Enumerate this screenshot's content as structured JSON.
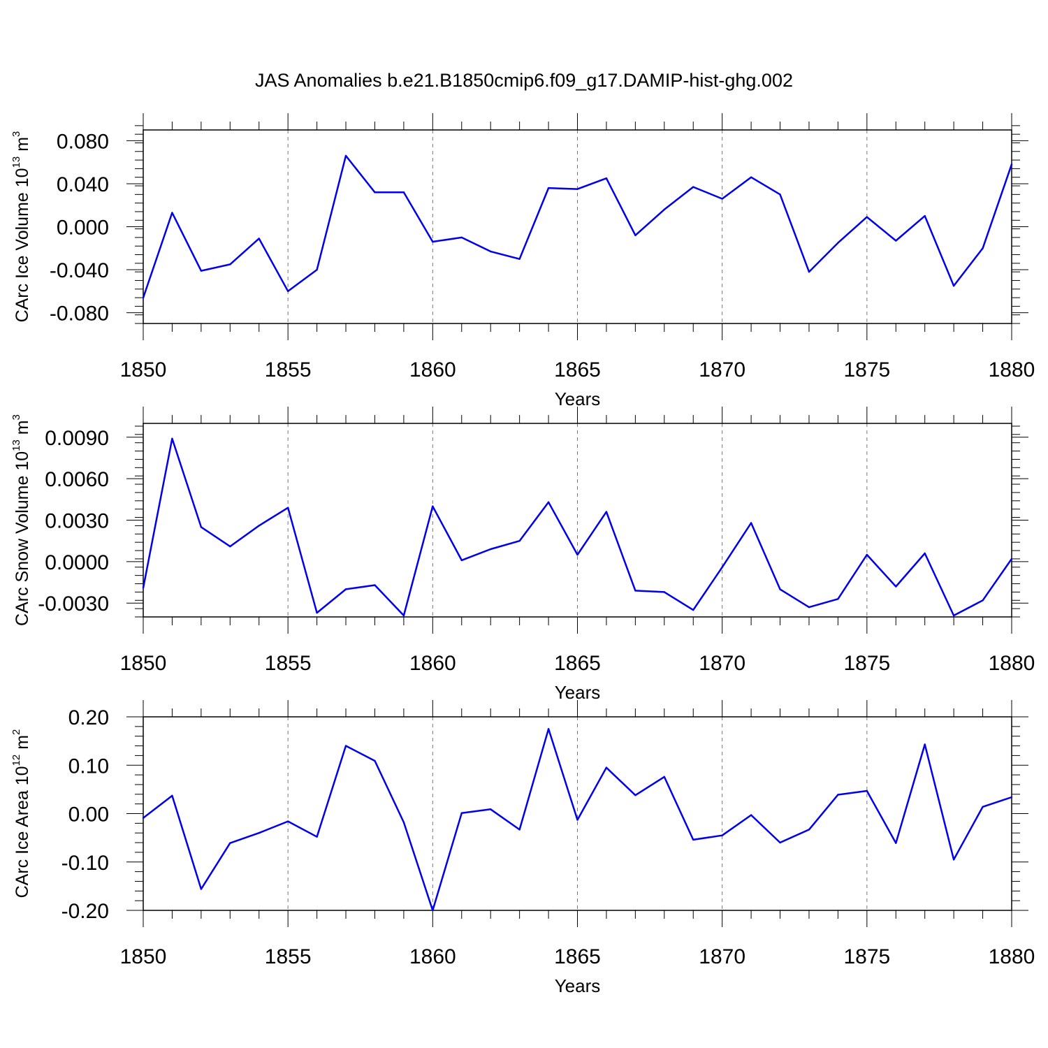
{
  "title": "JAS Anomalies b.e21.B1850cmip6.f09_g17.DAMIP-hist-ghg.002",
  "line_color": "#0000ee",
  "chart_data": [
    {
      "type": "line",
      "ylabel": "CArc Ice Volume",
      "yunit_base": "10",
      "yunit_exp": "13",
      "yunit_suffix": "m",
      "yunit_suffix_exp": "3",
      "xlabel": "Years",
      "xlim": [
        1850,
        1880
      ],
      "ylim": [
        -0.09,
        0.09
      ],
      "xticks": [
        1850,
        1855,
        1860,
        1865,
        1870,
        1875,
        1880
      ],
      "yticks": [
        -0.08,
        -0.04,
        0.0,
        0.04,
        0.08
      ],
      "ytick_labels": [
        "-0.080",
        "-0.040",
        "0.000",
        "0.040",
        "0.080"
      ],
      "yminor_step": 0.008,
      "x": [
        1850,
        1851,
        1852,
        1853,
        1854,
        1855,
        1856,
        1857,
        1858,
        1859,
        1860,
        1861,
        1862,
        1863,
        1864,
        1865,
        1866,
        1867,
        1868,
        1869,
        1870,
        1871,
        1872,
        1873,
        1874,
        1875,
        1876,
        1877,
        1878,
        1879,
        1880
      ],
      "values": [
        -0.066,
        0.013,
        -0.041,
        -0.035,
        -0.011,
        -0.06,
        -0.04,
        0.066,
        0.032,
        0.032,
        -0.014,
        -0.01,
        -0.023,
        -0.03,
        0.036,
        0.035,
        0.045,
        -0.008,
        0.016,
        0.037,
        0.026,
        0.046,
        0.03,
        -0.042,
        -0.015,
        0.009,
        -0.013,
        0.01,
        -0.055,
        -0.02,
        0.058
      ]
    },
    {
      "type": "line",
      "ylabel": "CArc Snow Volume",
      "yunit_base": "10",
      "yunit_exp": "13",
      "yunit_suffix": "m",
      "yunit_suffix_exp": "3",
      "xlabel": "Years",
      "xlim": [
        1850,
        1880
      ],
      "ylim": [
        -0.004,
        0.01
      ],
      "xticks": [
        1850,
        1855,
        1860,
        1865,
        1870,
        1875,
        1880
      ],
      "yticks": [
        -0.003,
        0.0,
        0.003,
        0.006,
        0.009
      ],
      "ytick_labels": [
        "-0.0030",
        "0.0000",
        "0.0030",
        "0.0060",
        "0.0090"
      ],
      "yminor_step": 0.0006,
      "x": [
        1850,
        1851,
        1852,
        1853,
        1854,
        1855,
        1856,
        1857,
        1858,
        1859,
        1860,
        1861,
        1862,
        1863,
        1864,
        1865,
        1866,
        1867,
        1868,
        1869,
        1870,
        1871,
        1872,
        1873,
        1874,
        1875,
        1876,
        1877,
        1878,
        1879,
        1880
      ],
      "values": [
        -0.0019,
        0.0089,
        0.0025,
        0.0011,
        0.0026,
        0.0039,
        -0.0037,
        -0.002,
        -0.0017,
        -0.0039,
        0.004,
        0.0001,
        0.0009,
        0.0015,
        0.0043,
        0.0005,
        0.0036,
        -0.0021,
        -0.0022,
        -0.0035,
        -0.0004,
        0.0028,
        -0.002,
        -0.0033,
        -0.0027,
        0.0005,
        -0.0018,
        0.0006,
        -0.0039,
        -0.0028,
        0.0002
      ]
    },
    {
      "type": "line",
      "ylabel": "CArc Ice Area",
      "yunit_base": "10",
      "yunit_exp": "12",
      "yunit_suffix": "m",
      "yunit_suffix_exp": "2",
      "xlabel": "Years",
      "xlim": [
        1850,
        1880
      ],
      "ylim": [
        -0.2,
        0.2
      ],
      "xticks": [
        1850,
        1855,
        1860,
        1865,
        1870,
        1875,
        1880
      ],
      "yticks": [
        -0.2,
        -0.1,
        0.0,
        0.1,
        0.2
      ],
      "ytick_labels": [
        "-0.20",
        "-0.10",
        "0.00",
        "0.10",
        "0.20"
      ],
      "yminor_step": 0.02,
      "x": [
        1850,
        1851,
        1852,
        1853,
        1854,
        1855,
        1856,
        1857,
        1858,
        1859,
        1860,
        1861,
        1862,
        1863,
        1864,
        1865,
        1866,
        1867,
        1868,
        1869,
        1870,
        1871,
        1872,
        1873,
        1874,
        1875,
        1876,
        1877,
        1878,
        1879,
        1880
      ],
      "values": [
        -0.009,
        0.037,
        -0.156,
        -0.061,
        -0.04,
        -0.016,
        -0.048,
        0.14,
        0.109,
        -0.018,
        -0.2,
        0.001,
        0.009,
        -0.033,
        0.175,
        -0.013,
        0.095,
        0.038,
        0.076,
        -0.054,
        -0.045,
        -0.003,
        -0.06,
        -0.033,
        0.039,
        0.047,
        -0.061,
        0.143,
        -0.095,
        0.014,
        0.034
      ]
    }
  ]
}
